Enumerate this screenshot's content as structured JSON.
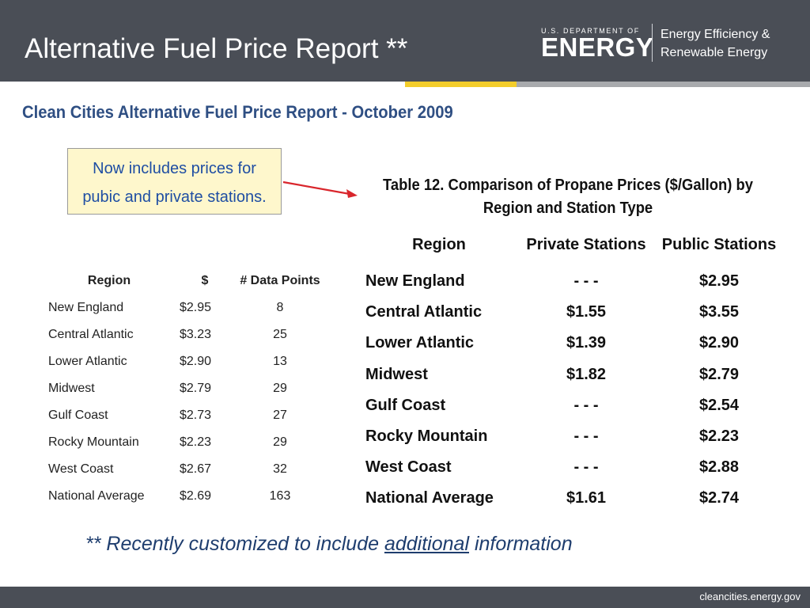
{
  "header": {
    "title": "Alternative Fuel Price Report **",
    "logo_small": "U.S. DEPARTMENT OF",
    "logo_big": "ENERGY",
    "logo_right_line1": "Energy Efficiency &",
    "logo_right_line2": "Renewable Energy"
  },
  "subtitle": "Clean Cities Alternative Fuel Price Report  - October 2009",
  "callout": {
    "line1": "Now includes prices for",
    "line2": "pubic and private stations."
  },
  "small_table": {
    "headers": [
      "Region",
      "$",
      "# Data Points"
    ],
    "rows": [
      [
        "New England",
        "$2.95",
        "8"
      ],
      [
        "Central Atlantic",
        "$3.23",
        "25"
      ],
      [
        "Lower Atlantic",
        "$2.90",
        "13"
      ],
      [
        "Midwest",
        "$2.79",
        "29"
      ],
      [
        "Gulf Coast",
        "$2.73",
        "27"
      ],
      [
        "Rocky Mountain",
        "$2.23",
        "29"
      ],
      [
        "West Coast",
        "$2.67",
        "32"
      ],
      [
        "National Average",
        "$2.69",
        "163"
      ]
    ]
  },
  "big_table": {
    "caption_line1": "Table 12. Comparison of Propane Prices ($/Gallon) by",
    "caption_line2": "Region and Station Type",
    "headers": [
      "Region",
      "Private Stations",
      "Public Stations"
    ],
    "rows": [
      [
        "New England",
        "- - -",
        "$2.95"
      ],
      [
        "Central Atlantic",
        "$1.55",
        "$3.55"
      ],
      [
        "Lower Atlantic",
        "$1.39",
        "$2.90"
      ],
      [
        "Midwest",
        "$1.82",
        "$2.79"
      ],
      [
        "Gulf Coast",
        "- - -",
        "$2.54"
      ],
      [
        "Rocky Mountain",
        "- - -",
        "$2.23"
      ],
      [
        "West Coast",
        "- - -",
        "$2.88"
      ],
      [
        "National Average",
        "$1.61",
        "$2.74"
      ]
    ]
  },
  "note": {
    "prefix": "**  Recently customized to include ",
    "underlined": "additional",
    "suffix": " information"
  },
  "footer": {
    "url": "cleancities.energy.gov"
  },
  "colors": {
    "header_bg": "#4a4e56",
    "accent_yellow": "#f3cd2b",
    "subtitle_blue": "#2f4f83",
    "callout_bg": "#fef7cc",
    "arrow_red": "#d9262c"
  }
}
